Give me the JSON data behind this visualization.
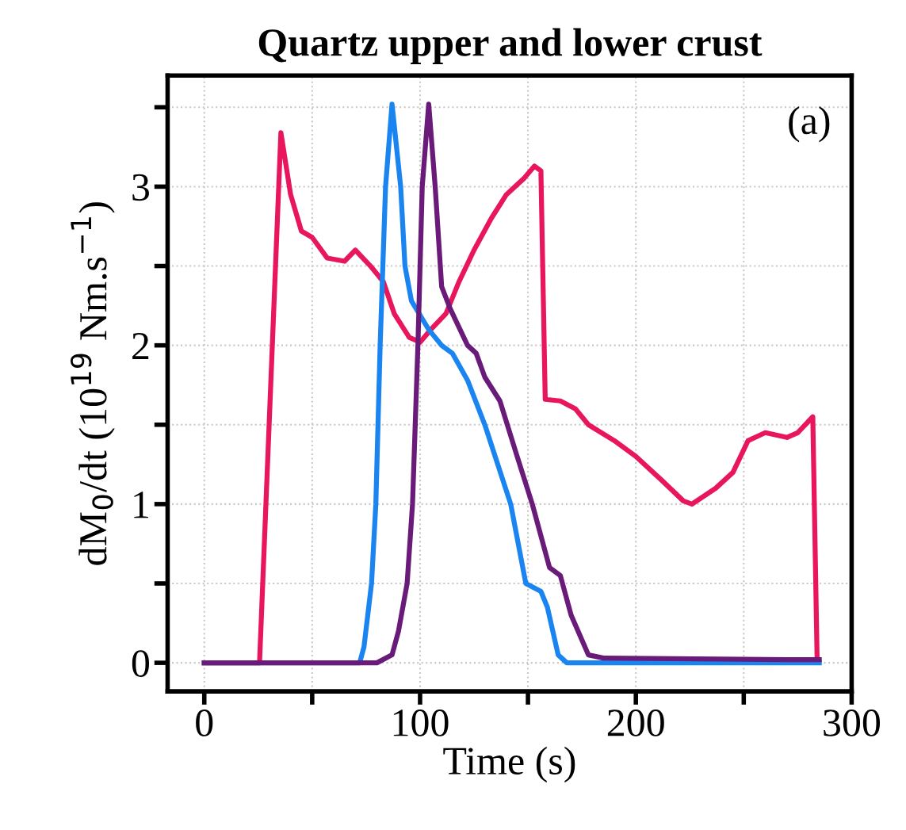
{
  "chart_data": {
    "type": "line",
    "title": "Quartz upper and lower crust",
    "xlabel": "Time (s)",
    "ylabel": "dM$_{0}$/dt (10$^{19}$ Nm.s$^{−1}$)",
    "annotations": [
      "(a)"
    ],
    "xlim": [
      -17,
      300
    ],
    "ylim": [
      -0.18,
      3.7
    ],
    "xticks": [
      0,
      {
        "value": 50,
        "label": null
      },
      100,
      {
        "value": 150,
        "label": null
      },
      200,
      {
        "value": 250,
        "label": null
      },
      300
    ],
    "yticks": [
      0,
      {
        "value": 0.5,
        "label": null
      },
      1,
      {
        "value": 1.5,
        "label": null
      },
      2,
      {
        "value": 2.5,
        "label": null
      },
      3,
      {
        "value": 3.5,
        "label": null
      }
    ],
    "grid": true,
    "line_style": "solid",
    "marker": "none",
    "series": [
      {
        "color": "#e8175d",
        "x": [
          0,
          25.6,
          35.5,
          40,
          45,
          50,
          57,
          65,
          70,
          77,
          83,
          88,
          95,
          100,
          105,
          112,
          118,
          125,
          133,
          140,
          148,
          153,
          156,
          158,
          165,
          172,
          178,
          190,
          200,
          212,
          222,
          226,
          237,
          245,
          252,
          260,
          270,
          275,
          282,
          284
        ],
        "values": [
          0,
          0,
          3.34,
          2.95,
          2.72,
          2.68,
          2.55,
          2.53,
          2.6,
          2.5,
          2.4,
          2.2,
          2.05,
          2.02,
          2.1,
          2.2,
          2.4,
          2.6,
          2.8,
          2.95,
          3.05,
          3.13,
          3.1,
          1.66,
          1.65,
          1.6,
          1.5,
          1.4,
          1.3,
          1.15,
          1.02,
          1.0,
          1.1,
          1.2,
          1.4,
          1.45,
          1.42,
          1.45,
          1.55,
          0.02
        ]
      },
      {
        "color": "#1a85f0",
        "x": [
          0,
          72,
          74,
          77.5,
          79.5,
          81.5,
          84,
          87,
          91,
          93,
          96,
          104,
          110,
          115,
          122,
          130,
          142,
          149,
          156,
          159,
          164,
          168,
          285
        ],
        "values": [
          0,
          0,
          0.1,
          0.5,
          1.0,
          2.0,
          3.0,
          3.52,
          3.0,
          2.5,
          2.28,
          2.1,
          2.0,
          1.95,
          1.78,
          1.5,
          1.0,
          0.5,
          0.45,
          0.35,
          0.05,
          0,
          0
        ]
      },
      {
        "color": "#6a1b7a",
        "x": [
          0,
          80,
          87,
          90,
          94,
          96.5,
          99,
          101,
          104,
          107,
          110,
          114,
          122,
          126,
          130,
          137,
          145,
          152,
          160,
          165,
          170,
          178,
          185,
          270,
          285
        ],
        "values": [
          0,
          0,
          0.05,
          0.2,
          0.5,
          1.0,
          2.0,
          3.0,
          3.52,
          3.0,
          2.37,
          2.23,
          2.0,
          1.95,
          1.8,
          1.65,
          1.3,
          1.0,
          0.6,
          0.55,
          0.3,
          0.05,
          0.03,
          0.02,
          0.02
        ]
      }
    ]
  }
}
